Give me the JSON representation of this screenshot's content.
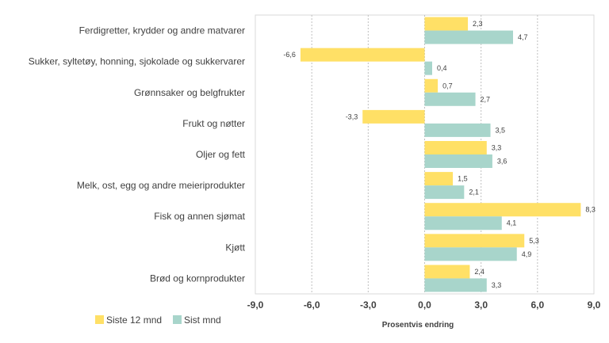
{
  "chart_data": {
    "type": "bar",
    "orientation": "horizontal",
    "categories": [
      "Ferdigretter, krydder og andre matvarer",
      "Sukker, syltetøy, honning, sjokolade og sukkervarer",
      "Grønnsaker og belgfrukter",
      "Frukt og nøtter",
      "Oljer og fett",
      "Melk, ost, egg og andre meieriprodukter",
      "Fisk og annen sjømat",
      "Kjøtt",
      "Brød og kornprodukter"
    ],
    "series": [
      {
        "name": "Siste 12 mnd",
        "color": "#FFE066",
        "values": [
          2.3,
          -6.6,
          0.7,
          -3.3,
          3.3,
          1.5,
          8.3,
          5.3,
          2.4
        ],
        "labels": [
          "2,3",
          "-6,6",
          "0,7",
          "-3,3",
          "3,3",
          "1,5",
          "8,3",
          "5,3",
          "2,4"
        ]
      },
      {
        "name": "Sist mnd",
        "color": "#A8D5CB",
        "values": [
          4.7,
          0.4,
          2.7,
          3.5,
          3.6,
          2.1,
          4.1,
          4.9,
          3.3
        ],
        "labels": [
          "4,7",
          "0,4",
          "2,7",
          "3,5",
          "3,6",
          "2,1",
          "4,1",
          "4,9",
          "3,3"
        ]
      }
    ],
    "xlim": [
      -9,
      9
    ],
    "ticks": [
      -9,
      -6,
      -3,
      0,
      3,
      6,
      9
    ],
    "tick_labels": [
      "-9,0",
      "-6,0",
      "-3,0",
      "0,0",
      "3,0",
      "6,0",
      "9,0"
    ],
    "xlabel": "Prosentvis endring",
    "grid": "vertical dotted",
    "legend_position": "bottom-left"
  }
}
